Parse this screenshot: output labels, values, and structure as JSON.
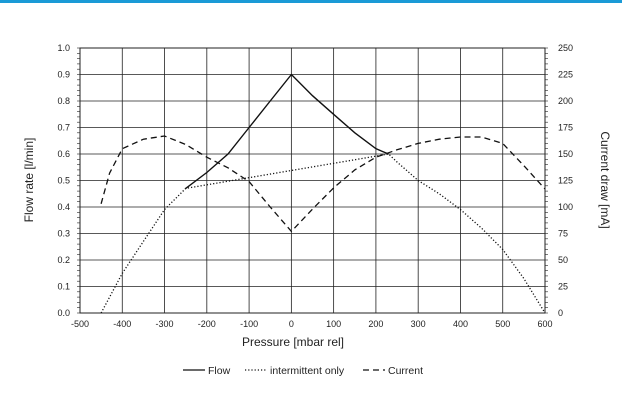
{
  "accent_color": "#1a9ad6",
  "chart_data": {
    "type": "line",
    "xlabel": "Pressure [mbar rel]",
    "ylabel": "Flow rate [l/min]",
    "y2label": "Current draw [mA]",
    "xlim": [
      -500,
      600
    ],
    "ylim": [
      0,
      1.0
    ],
    "y2lim": [
      0,
      250
    ],
    "grid": true,
    "legend_position": "bottom",
    "x_ticks": [
      "-500",
      "-400",
      "-300",
      "-200",
      "-100",
      "0",
      "100",
      "200",
      "300",
      "400",
      "500",
      "600"
    ],
    "y_ticks": [
      "0.0",
      "0.1",
      "0.2",
      "0.3",
      "0.4",
      "0.5",
      "0.6",
      "0.7",
      "0.8",
      "0.9",
      "1.0"
    ],
    "y2_ticks": [
      "0",
      "25",
      "50",
      "75",
      "100",
      "125",
      "150",
      "175",
      "200",
      "225",
      "250"
    ],
    "series": [
      {
        "name": "Flow",
        "axis": "left",
        "style": "solid",
        "points": [
          [
            -250,
            0.47
          ],
          [
            -200,
            0.53
          ],
          [
            -150,
            0.6
          ],
          [
            -100,
            0.7
          ],
          [
            -50,
            0.8
          ],
          [
            0,
            0.9
          ],
          [
            50,
            0.82
          ],
          [
            100,
            0.75
          ],
          [
            150,
            0.68
          ],
          [
            200,
            0.62
          ],
          [
            230,
            0.6
          ]
        ]
      },
      {
        "name": "intermittent only",
        "axis": "left",
        "style": "dotted",
        "points": [
          [
            -450,
            0.0
          ],
          [
            -400,
            0.15
          ],
          [
            -350,
            0.27
          ],
          [
            -300,
            0.39
          ],
          [
            -250,
            0.47
          ],
          [
            230,
            0.6
          ],
          [
            250,
            0.57
          ],
          [
            300,
            0.5
          ],
          [
            350,
            0.45
          ],
          [
            400,
            0.39
          ],
          [
            450,
            0.32
          ],
          [
            500,
            0.24
          ],
          [
            550,
            0.13
          ],
          [
            600,
            0.0
          ]
        ]
      },
      {
        "name": "Current",
        "axis": "right",
        "style": "dashed",
        "points": [
          [
            -450,
            103
          ],
          [
            -430,
            132
          ],
          [
            -400,
            155
          ],
          [
            -350,
            164
          ],
          [
            -300,
            167
          ],
          [
            -250,
            159
          ],
          [
            -200,
            147
          ],
          [
            -150,
            137
          ],
          [
            -100,
            124
          ],
          [
            -50,
            100
          ],
          [
            0,
            77
          ],
          [
            50,
            98
          ],
          [
            100,
            118
          ],
          [
            150,
            135
          ],
          [
            200,
            147
          ],
          [
            250,
            154
          ],
          [
            300,
            160
          ],
          [
            350,
            164
          ],
          [
            400,
            166
          ],
          [
            450,
            166
          ],
          [
            500,
            160
          ],
          [
            550,
            139
          ],
          [
            600,
            117
          ]
        ]
      }
    ]
  }
}
